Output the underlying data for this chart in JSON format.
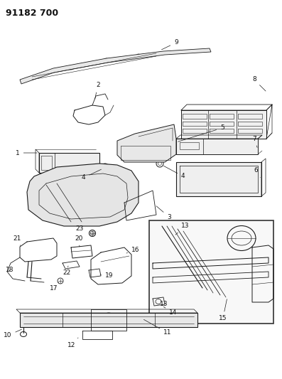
{
  "title": "91182 700",
  "title_fontsize": 9,
  "title_fontweight": "bold",
  "bg_color": "#ffffff",
  "line_color": "#1a1a1a",
  "label_color": "#111111",
  "label_fontsize": 6.5,
  "fig_width": 3.97,
  "fig_height": 5.33,
  "dpi": 100
}
